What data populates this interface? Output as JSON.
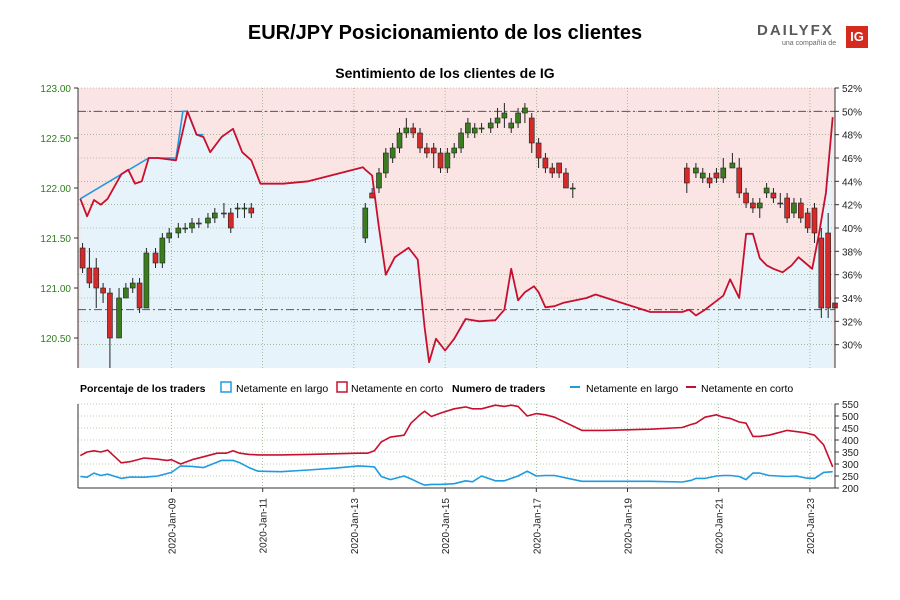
{
  "header": {
    "title": "EUR/JPY Posicionamiento de los clientes",
    "subtitle": "Sentimiento de los clientes de IG"
  },
  "logo": {
    "brand_a": "DAILY",
    "brand_b": "FX",
    "tagline": "una compañía de",
    "badge": "IG"
  },
  "colors": {
    "long": "#1f9be0",
    "short": "#c8102e",
    "candle_up": "#3a7d1e",
    "candle_down": "#d42a2a",
    "fill_long": "#e6f3fb",
    "fill_short": "#fbe4e4",
    "price_axis": "#2e7d1e"
  },
  "chart_data": [
    {
      "type": "candlestick+line",
      "name": "price-sentiment",
      "price_axis": {
        "side": "left",
        "ylim": [
          120.2,
          123.0
        ],
        "ticks": [
          "123.00",
          "122.50",
          "122.00",
          "121.50",
          "121.00",
          "120.50"
        ]
      },
      "pct_axis": {
        "side": "right",
        "ylim": [
          28.0,
          52.0
        ],
        "ticks": [
          "52%",
          "50%",
          "48%",
          "46%",
          "44%",
          "42%",
          "40%",
          "38%",
          "36%",
          "34%",
          "32%",
          "30%"
        ]
      },
      "x_axis": {
        "ticks": [
          "2020-Jan-09",
          "2020-Jan-11",
          "2020-Jan-13",
          "2020-Jan-15",
          "2020-Jan-17",
          "2020-Jan-19",
          "2020-Jan-21",
          "2020-Jan-23"
        ],
        "tick_positions": [
          9,
          11,
          13,
          15,
          17,
          19,
          21,
          23
        ]
      },
      "reference_lines": [
        {
          "pct": 50.0,
          "style": "dash-dot"
        },
        {
          "pct": 33.0,
          "style": "dash-dot"
        }
      ],
      "short_pct": {
        "x": [
          7.0,
          7.15,
          7.3,
          7.45,
          7.6,
          7.9,
          8.05,
          8.2,
          8.35,
          8.5,
          8.7,
          9.1,
          9.35,
          9.55,
          9.7,
          9.85,
          10.1,
          10.35,
          10.55,
          10.75,
          10.95,
          11.45,
          12.0,
          13.2,
          13.25,
          13.4,
          13.55,
          13.7,
          13.9,
          14.2,
          14.4,
          14.55,
          14.65,
          14.8,
          15.0,
          15.2,
          15.45,
          15.75,
          16.1,
          16.3,
          16.45,
          16.6,
          16.75,
          16.95,
          17.05,
          17.2,
          17.4,
          17.6,
          18.1,
          18.3,
          19.5,
          20.2,
          20.35,
          20.5,
          20.7,
          21.1,
          21.25,
          21.45,
          21.6,
          21.75,
          21.9,
          22.05,
          22.2,
          22.4,
          22.6,
          22.75,
          22.9,
          23.05,
          23.2,
          23.35,
          23.5
        ],
        "values": [
          42.5,
          41.0,
          42.4,
          42.0,
          42.5,
          44.6,
          45.0,
          43.8,
          44.0,
          46.0,
          46.0,
          45.8,
          50.0,
          48.0,
          47.8,
          46.5,
          47.8,
          48.5,
          46.5,
          45.8,
          43.8,
          43.8,
          44.0,
          45.2,
          45.0,
          44.5,
          40.0,
          36.0,
          37.5,
          38.3,
          37.3,
          31.5,
          28.5,
          30.5,
          29.5,
          30.5,
          32.2,
          32.0,
          32.1,
          33.0,
          36.5,
          33.8,
          34.5,
          35.0,
          34.5,
          33.2,
          33.3,
          33.6,
          34.0,
          34.3,
          32.8,
          32.8,
          33.0,
          32.5,
          33.0,
          34.2,
          35.6,
          34.0,
          39.5,
          39.5,
          37.4,
          36.8,
          36.5,
          36.2,
          36.8,
          37.5,
          37.0,
          36.5,
          39.5,
          43.0,
          49.5
        ]
      },
      "long_pct": {
        "x": [
          7.0,
          8.5,
          9.1,
          9.25,
          9.35,
          9.55,
          9.7
        ],
        "values": [
          42.5,
          46.0,
          46.0,
          50.0,
          50.0,
          48.0,
          48.0
        ]
      },
      "candles": {
        "x": [
          7.05,
          7.2,
          7.35,
          7.5,
          7.65,
          7.85,
          8.0,
          8.15,
          8.3,
          8.45,
          8.65,
          8.8,
          8.95,
          9.15,
          9.3,
          9.45,
          9.6,
          9.8,
          9.95,
          10.15,
          10.3,
          10.45,
          10.6,
          10.75,
          13.25,
          13.4,
          13.55,
          13.7,
          13.85,
          14.0,
          14.15,
          14.3,
          14.45,
          14.6,
          14.75,
          14.9,
          15.05,
          15.2,
          15.35,
          15.5,
          15.65,
          15.8,
          16.0,
          16.15,
          16.3,
          16.45,
          16.6,
          16.75,
          16.9,
          17.05,
          17.2,
          17.35,
          17.5,
          17.65,
          17.8,
          20.3,
          20.5,
          20.65,
          20.8,
          20.95,
          21.1,
          21.3,
          21.45,
          21.6,
          21.75,
          21.9,
          22.05,
          22.2,
          22.35,
          22.5,
          22.65,
          22.8,
          22.95,
          23.1,
          23.25,
          23.4,
          23.55
        ],
        "open": [
          121.4,
          121.2,
          121.2,
          121.0,
          120.95,
          120.5,
          120.9,
          121.0,
          121.05,
          120.8,
          121.35,
          121.25,
          121.5,
          121.55,
          121.6,
          121.6,
          121.65,
          121.65,
          121.7,
          121.75,
          121.75,
          121.8,
          121.8,
          121.8,
          121.5,
          121.95,
          122.0,
          122.15,
          122.3,
          122.4,
          122.55,
          122.6,
          122.55,
          122.4,
          122.4,
          122.35,
          122.2,
          122.35,
          122.4,
          122.55,
          122.55,
          122.6,
          122.6,
          122.65,
          122.7,
          122.6,
          122.65,
          122.75,
          122.7,
          122.45,
          122.3,
          122.2,
          122.25,
          122.15,
          122.0,
          122.2,
          122.15,
          122.1,
          122.1,
          122.15,
          122.1,
          122.2,
          122.2,
          121.95,
          121.85,
          121.8,
          121.95,
          121.95,
          121.85,
          121.9,
          121.75,
          121.85,
          121.75,
          121.8,
          121.5,
          121.55,
          120.85
        ],
        "close": [
          121.2,
          121.05,
          121.0,
          120.95,
          120.5,
          120.9,
          121.0,
          121.05,
          120.8,
          121.35,
          121.25,
          121.5,
          121.55,
          121.6,
          121.6,
          121.65,
          121.65,
          121.7,
          121.75,
          121.75,
          121.6,
          121.8,
          121.8,
          121.75,
          121.8,
          121.9,
          122.15,
          122.35,
          122.4,
          122.55,
          122.6,
          122.55,
          122.4,
          122.35,
          122.35,
          122.2,
          122.35,
          122.4,
          122.55,
          122.65,
          122.6,
          122.6,
          122.65,
          122.7,
          122.75,
          122.65,
          122.75,
          122.8,
          122.45,
          122.3,
          122.2,
          122.15,
          122.15,
          122.0,
          122.0,
          122.05,
          122.2,
          122.15,
          122.05,
          122.1,
          122.2,
          122.25,
          121.95,
          121.85,
          121.8,
          121.85,
          122.0,
          121.9,
          121.85,
          121.7,
          121.85,
          121.7,
          121.6,
          121.55,
          120.8,
          120.8,
          120.8
        ],
        "high": [
          121.45,
          121.4,
          121.3,
          121.05,
          121.0,
          121.0,
          121.05,
          121.1,
          121.1,
          121.4,
          121.4,
          121.55,
          121.6,
          121.65,
          121.65,
          121.7,
          121.7,
          121.75,
          121.8,
          121.85,
          121.8,
          121.85,
          121.85,
          121.85,
          121.85,
          122.0,
          122.2,
          122.4,
          122.45,
          122.6,
          122.7,
          122.65,
          122.6,
          122.45,
          122.45,
          122.4,
          122.4,
          122.45,
          122.6,
          122.7,
          122.65,
          122.65,
          122.7,
          122.8,
          122.85,
          122.7,
          122.8,
          122.85,
          122.75,
          122.5,
          122.35,
          122.25,
          122.25,
          122.2,
          122.05,
          122.25,
          122.25,
          122.2,
          122.15,
          122.2,
          122.3,
          122.35,
          122.3,
          122.0,
          121.9,
          121.9,
          122.05,
          122.0,
          121.95,
          121.95,
          121.9,
          121.9,
          121.8,
          121.85,
          121.6,
          121.75,
          120.85
        ],
        "low": [
          121.15,
          121.0,
          120.8,
          120.85,
          120.2,
          120.7,
          120.9,
          120.95,
          120.75,
          120.8,
          121.2,
          121.2,
          121.45,
          121.5,
          121.55,
          121.55,
          121.6,
          121.6,
          121.65,
          121.7,
          121.55,
          121.7,
          121.7,
          121.7,
          121.45,
          121.9,
          121.95,
          122.1,
          122.25,
          122.35,
          122.5,
          122.5,
          122.35,
          122.3,
          122.2,
          122.15,
          122.15,
          122.3,
          122.35,
          122.5,
          122.5,
          122.55,
          122.55,
          122.6,
          122.6,
          122.55,
          122.6,
          122.65,
          122.35,
          122.2,
          122.15,
          122.1,
          122.1,
          122.0,
          121.9,
          121.95,
          122.1,
          122.05,
          122.0,
          122.05,
          122.05,
          122.2,
          121.9,
          121.8,
          121.75,
          121.7,
          121.9,
          121.85,
          121.8,
          121.65,
          121.7,
          121.65,
          121.55,
          121.45,
          120.7,
          120.7,
          120.6
        ]
      }
    },
    {
      "type": "line",
      "name": "trader-count",
      "ylim": [
        200,
        550
      ],
      "yticks": [
        "550",
        "500",
        "450",
        "400",
        "350",
        "300",
        "250",
        "200"
      ],
      "series": [
        {
          "name": "Netamente en largo",
          "color": "#1f9be0",
          "x": [
            7.0,
            7.15,
            7.3,
            7.45,
            7.6,
            7.9,
            8.1,
            8.4,
            8.7,
            9.0,
            9.2,
            9.45,
            9.7,
            9.9,
            10.1,
            10.35,
            10.5,
            10.7,
            10.9,
            11.4,
            12.0,
            12.6,
            13.1,
            13.3,
            13.45,
            13.6,
            13.8,
            14.1,
            14.25,
            14.45,
            14.55,
            14.7,
            14.9,
            15.2,
            15.45,
            15.6,
            15.8,
            16.1,
            16.3,
            16.45,
            16.6,
            16.8,
            17.0,
            17.2,
            17.4,
            18.0,
            18.5,
            19.5,
            20.2,
            20.4,
            20.5,
            20.7,
            20.95,
            21.1,
            21.25,
            21.45,
            21.6,
            21.75,
            21.9,
            22.1,
            22.3,
            22.5,
            22.7,
            22.9,
            23.1,
            23.3,
            23.5
          ],
          "values": [
            248,
            245,
            262,
            252,
            258,
            240,
            246,
            245,
            250,
            265,
            292,
            290,
            285,
            300,
            315,
            315,
            305,
            285,
            270,
            268,
            275,
            283,
            292,
            290,
            288,
            248,
            235,
            250,
            238,
            220,
            212,
            215,
            215,
            218,
            230,
            226,
            250,
            230,
            230,
            240,
            250,
            270,
            250,
            252,
            252,
            228,
            228,
            228,
            225,
            232,
            240,
            240,
            250,
            252,
            252,
            248,
            235,
            262,
            262,
            252,
            250,
            248,
            250,
            242,
            240,
            265,
            268
          ]
        },
        {
          "name": "Netamente en corto",
          "color": "#c8102e",
          "x": [
            7.0,
            7.15,
            7.3,
            7.45,
            7.6,
            7.9,
            8.1,
            8.4,
            8.7,
            8.9,
            9.0,
            9.2,
            9.45,
            9.7,
            10.0,
            10.2,
            10.35,
            10.5,
            10.7,
            10.9,
            11.4,
            12.0,
            13.1,
            13.3,
            13.45,
            13.6,
            13.8,
            14.1,
            14.25,
            14.45,
            14.55,
            14.7,
            14.9,
            15.2,
            15.45,
            15.6,
            15.8,
            16.1,
            16.3,
            16.45,
            16.6,
            16.8,
            17.0,
            17.2,
            17.4,
            18.0,
            18.5,
            19.5,
            20.2,
            20.4,
            20.5,
            20.7,
            20.95,
            21.1,
            21.25,
            21.45,
            21.6,
            21.75,
            21.9,
            22.1,
            22.3,
            22.5,
            22.7,
            22.9,
            23.1,
            23.3,
            23.5
          ],
          "values": [
            335,
            350,
            355,
            350,
            358,
            305,
            310,
            325,
            320,
            315,
            318,
            300,
            318,
            330,
            345,
            345,
            355,
            345,
            340,
            338,
            338,
            340,
            345,
            345,
            355,
            392,
            412,
            420,
            470,
            505,
            520,
            498,
            512,
            530,
            538,
            530,
            530,
            545,
            540,
            545,
            540,
            500,
            510,
            505,
            495,
            440,
            440,
            445,
            452,
            465,
            470,
            495,
            505,
            495,
            490,
            475,
            470,
            415,
            415,
            420,
            430,
            440,
            435,
            430,
            420,
            380,
            288
          ]
        }
      ],
      "legend_labels": {
        "pct_title": "Porcentaje de los traders",
        "pct_long": "Netamente en largo",
        "pct_short": "Netamente en corto",
        "count_title": "Numero de traders",
        "count_long": "Netamente en largo",
        "count_short": "Netamente en corto"
      }
    }
  ]
}
